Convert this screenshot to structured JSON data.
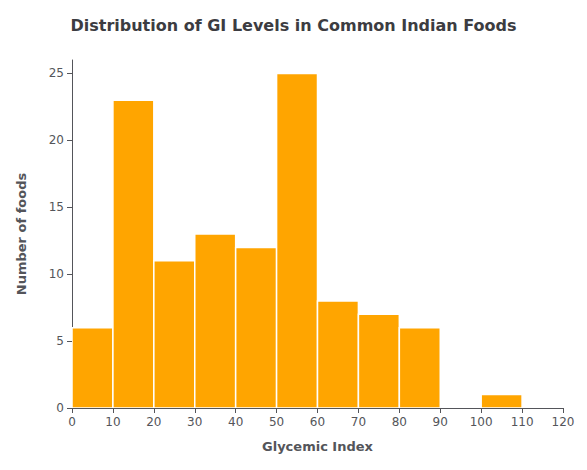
{
  "chart_data": {
    "type": "histogram",
    "title": "Distribution of GI Levels in Common Indian Foods",
    "xlabel": "Glycemic Index",
    "ylabel": "Number of foods",
    "bins": [
      0,
      10,
      20,
      30,
      40,
      50,
      60,
      70,
      80,
      90,
      100,
      110,
      120
    ],
    "values": [
      6,
      23,
      11,
      13,
      12,
      25,
      8,
      7,
      6,
      0,
      1,
      0
    ],
    "color": "#FFA500",
    "xlim": [
      0,
      120
    ],
    "ylim": [
      0,
      26
    ],
    "xticks": [
      0,
      10,
      20,
      30,
      40,
      50,
      60,
      70,
      80,
      90,
      100,
      110,
      120
    ],
    "yticks": [
      0,
      5,
      10,
      15,
      20,
      25
    ],
    "grid": false
  }
}
